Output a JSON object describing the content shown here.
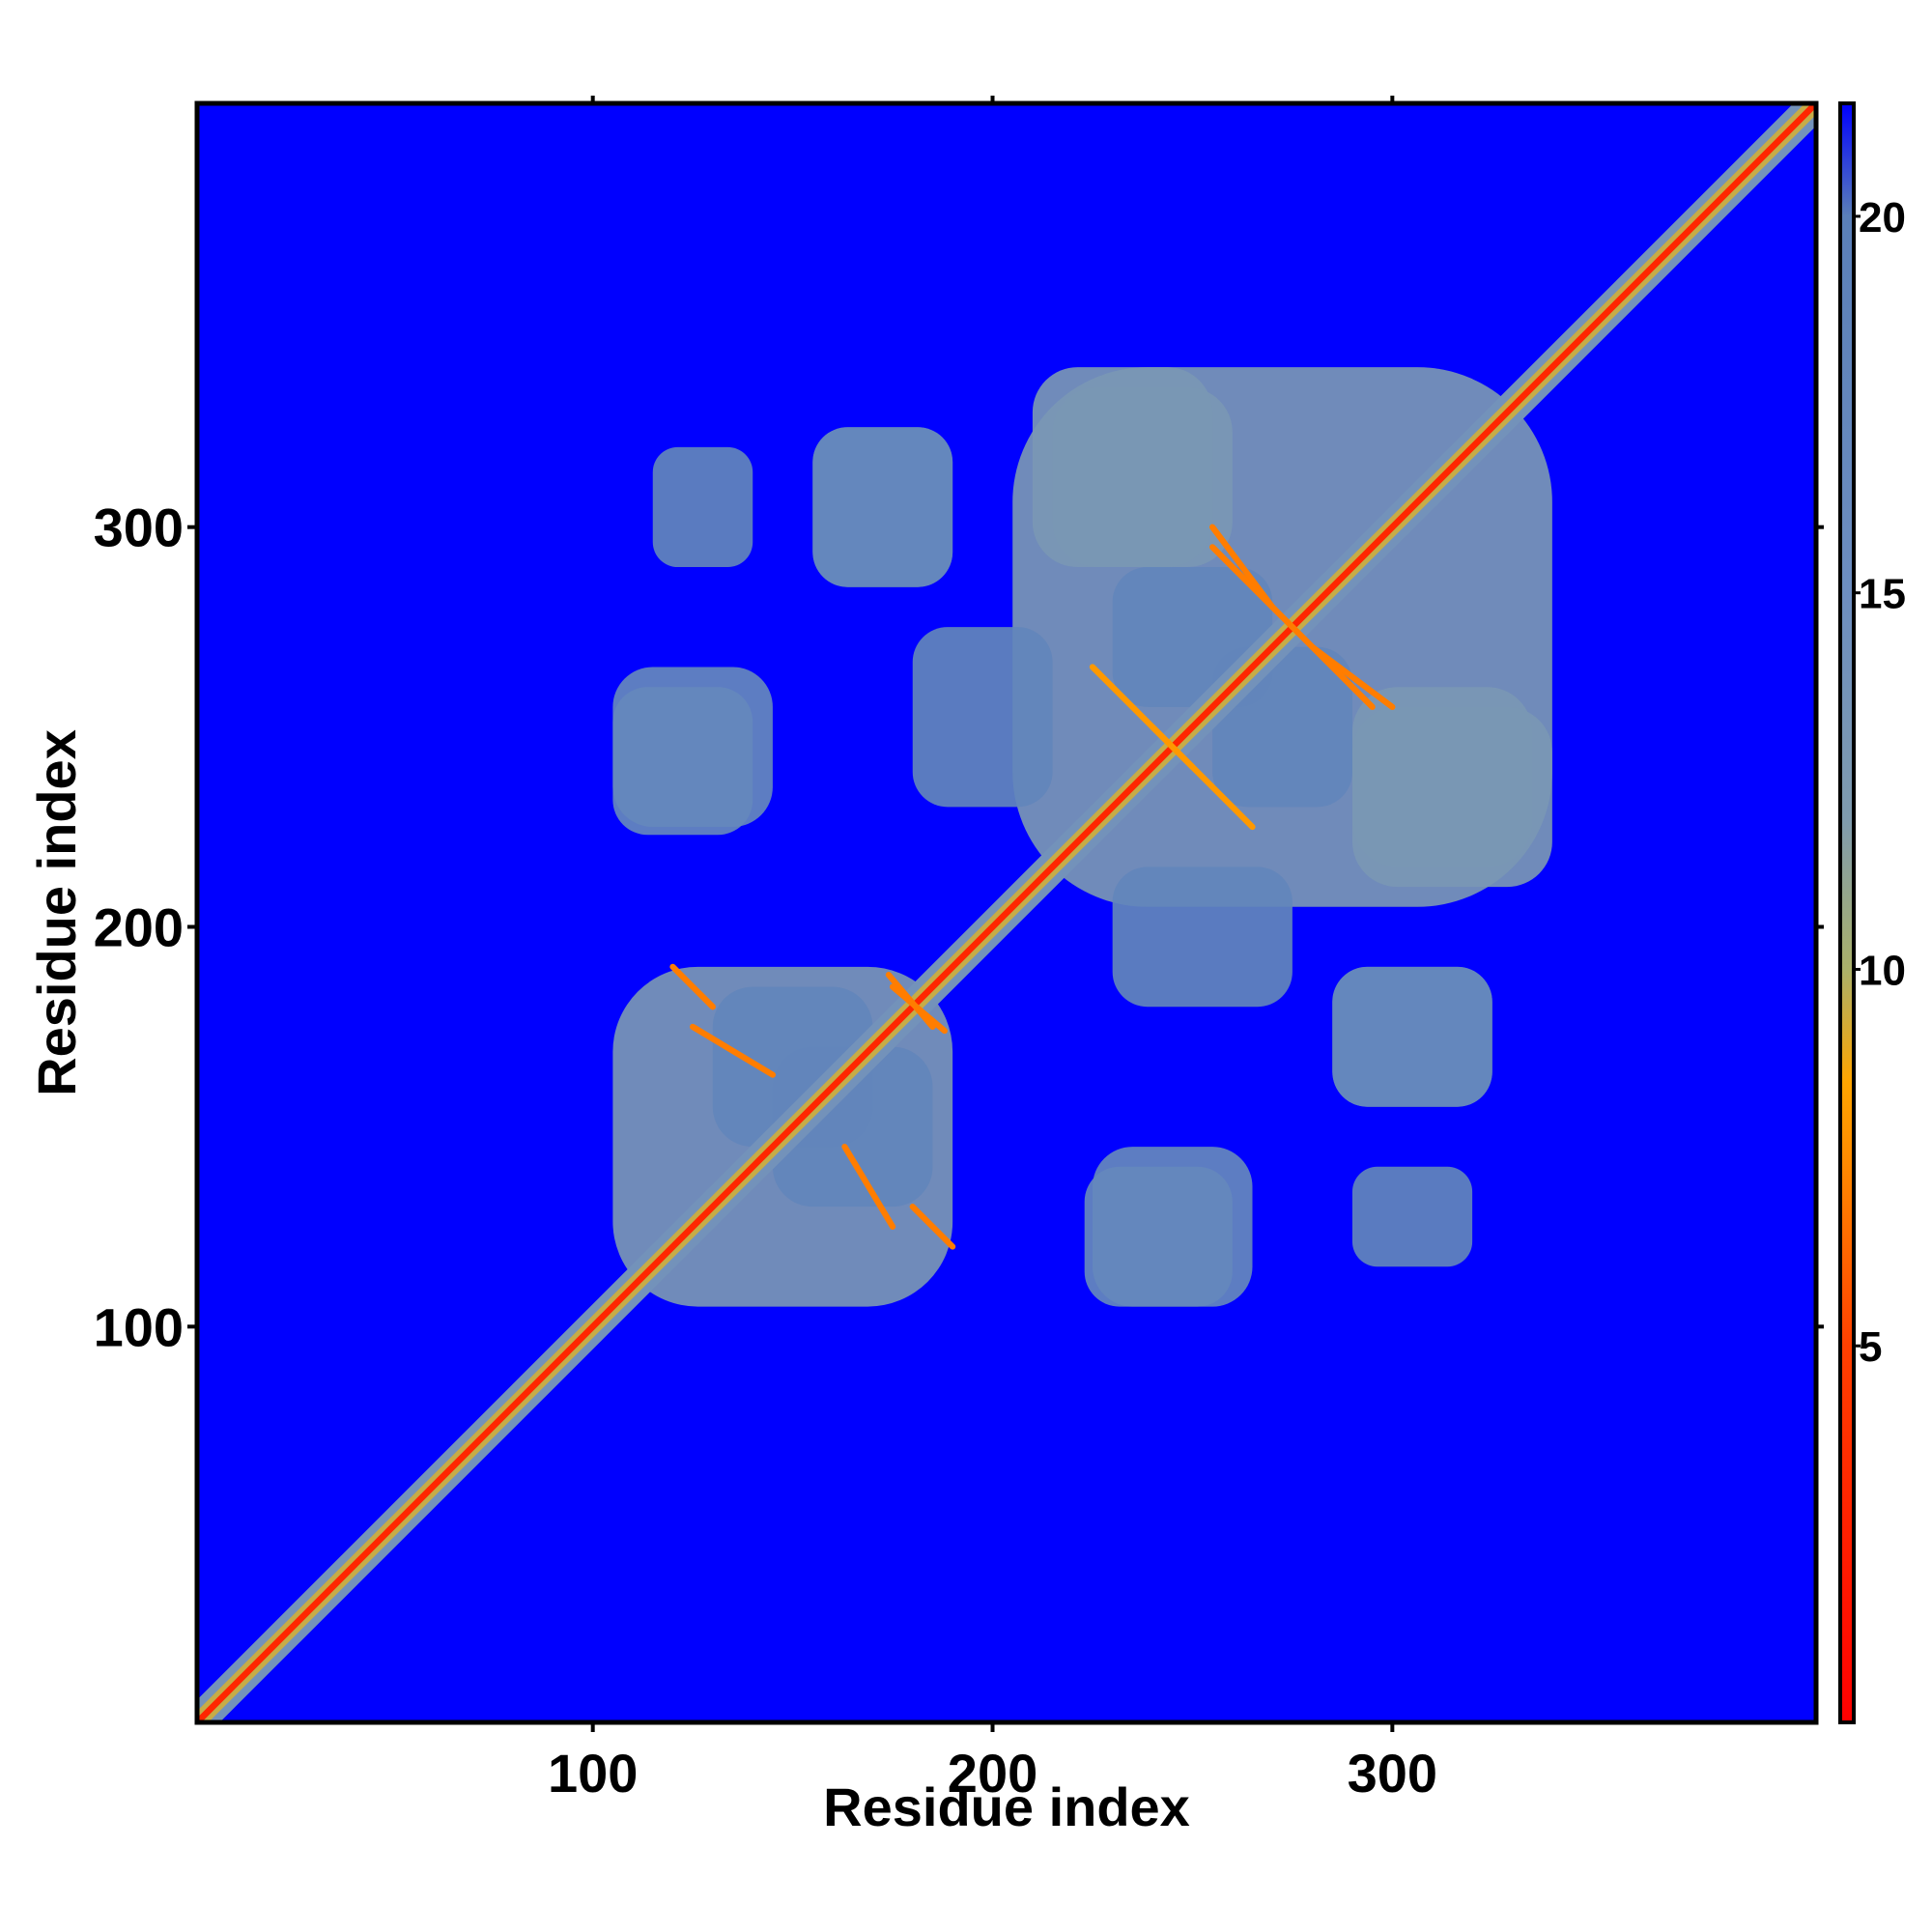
{
  "chart_data": {
    "type": "heatmap",
    "title": "",
    "xlabel": "Residue index",
    "ylabel": "Residue index",
    "xlim": [
      1,
      406
    ],
    "ylim": [
      1,
      406
    ],
    "x_ticks": [
      100,
      200,
      300
    ],
    "y_ticks": [
      100,
      200,
      300
    ],
    "colorbar": {
      "range": [
        0,
        21.5
      ],
      "ticks": [
        5,
        10,
        15,
        20
      ],
      "stops": [
        {
          "value": 0,
          "color": "#ff0000"
        },
        {
          "value": 5,
          "color": "#ff4000"
        },
        {
          "value": 7.5,
          "color": "#ff8c00"
        },
        {
          "value": 8.5,
          "color": "#ffa500"
        },
        {
          "value": 10,
          "color": "#aab06a"
        },
        {
          "value": 12,
          "color": "#7f9bae"
        },
        {
          "value": 15,
          "color": "#6d8ec0"
        },
        {
          "value": 20,
          "color": "#5a7fb8"
        },
        {
          "value": 21.5,
          "color": "#0000ff"
        }
      ]
    },
    "background_color": "#0000ff",
    "diagonal": {
      "from": 1,
      "to": 406,
      "value": 3
    },
    "contact_regions": [
      {
        "x": [
          105,
          190
        ],
        "y": [
          105,
          190
        ],
        "value": 13
      },
      {
        "x": [
          205,
          340
        ],
        "y": [
          205,
          340
        ],
        "value": 13
      },
      {
        "x": [
          105,
          140
        ],
        "y": [
          223,
          260
        ],
        "value": 17
      },
      {
        "x": [
          155,
          190
        ],
        "y": [
          285,
          325
        ],
        "value": 17
      },
      {
        "x": [
          215,
          260
        ],
        "y": [
          290,
          335
        ],
        "value": 13
      },
      {
        "x": [
          225,
          265
        ],
        "y": [
          105,
          145
        ],
        "value": 17
      },
      {
        "x": [
          285,
          325
        ],
        "y": [
          155,
          190
        ],
        "value": 17
      },
      {
        "x": [
          290,
          340
        ],
        "y": [
          210,
          255
        ],
        "value": 13
      },
      {
        "x": [
          115,
          140
        ],
        "y": [
          290,
          320
        ],
        "value": 18
      },
      {
        "x": [
          145,
          185
        ],
        "y": [
          130,
          170
        ],
        "value": 18
      },
      {
        "x": [
          255,
          290
        ],
        "y": [
          230,
          270
        ],
        "value": 18
      },
      {
        "x": [
          230,
          275
        ],
        "y": [
          180,
          215
        ],
        "value": 18
      }
    ],
    "antiparallel_contacts": [
      {
        "from": [
          120,
          190
        ],
        "to": [
          130,
          180
        ],
        "value": 7
      },
      {
        "from": [
          175,
          185
        ],
        "to": [
          188,
          174
        ],
        "value": 7
      },
      {
        "from": [
          163,
          145
        ],
        "to": [
          175,
          125
        ],
        "value": 7
      },
      {
        "from": [
          255,
          300
        ],
        "to": [
          270,
          280
        ],
        "value": 7
      },
      {
        "from": [
          275,
          275
        ],
        "to": [
          295,
          255
        ],
        "value": 7
      },
      {
        "from": [
          225,
          265
        ],
        "to": [
          250,
          240
        ],
        "value": 8
      }
    ]
  }
}
